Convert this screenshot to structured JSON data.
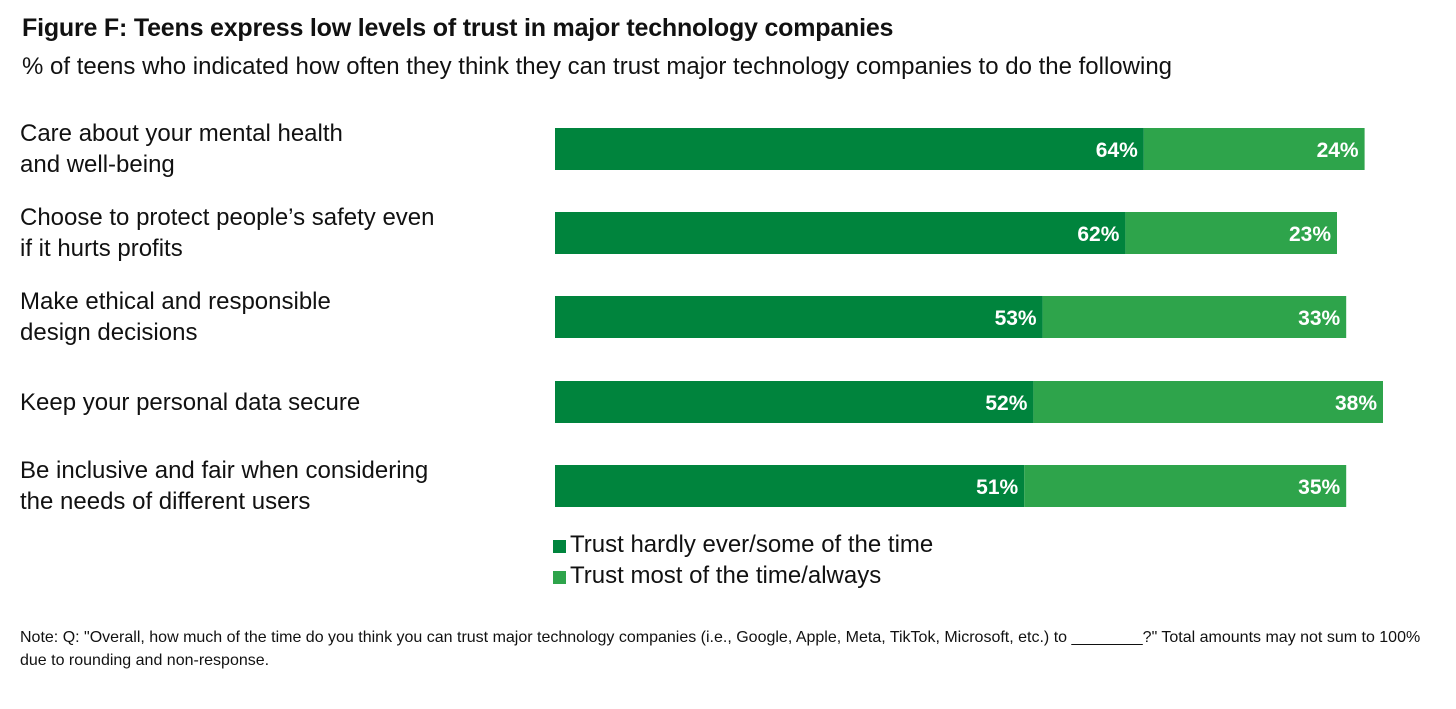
{
  "chart_data": {
    "type": "bar",
    "orientation": "horizontal",
    "stacked": true,
    "title": "Figure F: Teens express low levels of trust in major technology companies",
    "subtitle": "% of teens who indicated how often they think they can trust major technology companies to do the following",
    "categories": [
      "Care about your mental health\nand well-being",
      "Choose to protect people’s safety even\nif it hurts profits",
      "Make ethical and responsible\ndesign decisions",
      "Keep your personal data secure",
      "Be inclusive and fair when considering\nthe needs of different users"
    ],
    "series": [
      {
        "name": "Trust hardly ever/some of the time",
        "color": "#00843D",
        "values": [
          64,
          62,
          53,
          52,
          51
        ],
        "labels": [
          "64%",
          "62%",
          "53%",
          "52%",
          "51%"
        ]
      },
      {
        "name": "Trust most of the time/always",
        "color": "#2EA44B",
        "values": [
          24,
          23,
          33,
          38,
          35
        ],
        "labels": [
          "24%",
          "23%",
          "33%",
          "38%",
          "35%"
        ]
      }
    ],
    "xlim": [
      0,
      100
    ],
    "grid": false,
    "legend_position": "bottom"
  },
  "note": "Note: Q: \"Overall, how much of the time do you think you can trust major technology companies (i.e., Google, Apple, Meta, TikTok, Microsoft, etc.) to ________?\" Total amounts may not sum to 100% due to rounding and non-response."
}
